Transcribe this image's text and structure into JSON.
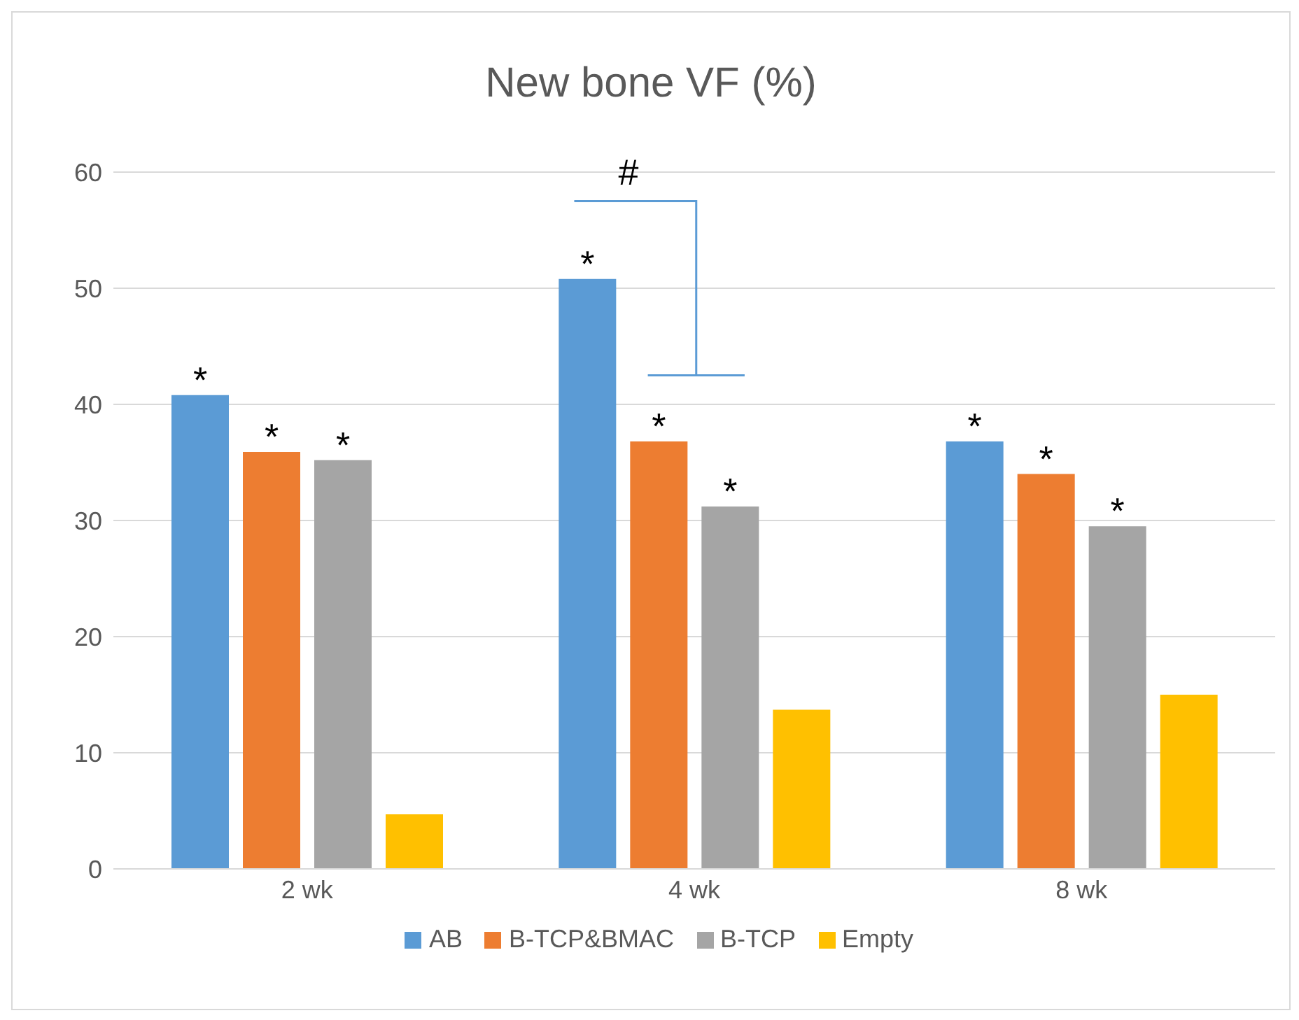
{
  "chart_data": {
    "type": "bar",
    "title": "New bone VF (%)",
    "categories": [
      "2 wk",
      "4 wk",
      "8 wk"
    ],
    "series": [
      {
        "name": "AB",
        "color": "#5b9bd5",
        "values": [
          40.8,
          50.8,
          36.8
        ],
        "value_labels": [
          "*",
          "*",
          "*"
        ]
      },
      {
        "name": "B-TCP&BMAC",
        "color": "#ed7d31",
        "values": [
          35.9,
          36.8,
          34.0
        ],
        "value_labels": [
          "*",
          "*",
          "*"
        ]
      },
      {
        "name": "B-TCP",
        "color": "#a5a5a5",
        "values": [
          35.2,
          31.2,
          29.5
        ],
        "value_labels": [
          "*",
          "*",
          "*"
        ]
      },
      {
        "name": "Empty",
        "color": "#ffc000",
        "values": [
          4.7,
          13.7,
          15.0
        ]
      }
    ],
    "ylim": [
      0,
      60
    ],
    "yticks": [
      0,
      10,
      20,
      30,
      40,
      50,
      60
    ],
    "grid": "y",
    "legend": "bottom",
    "annotations": [
      "#"
    ]
  }
}
